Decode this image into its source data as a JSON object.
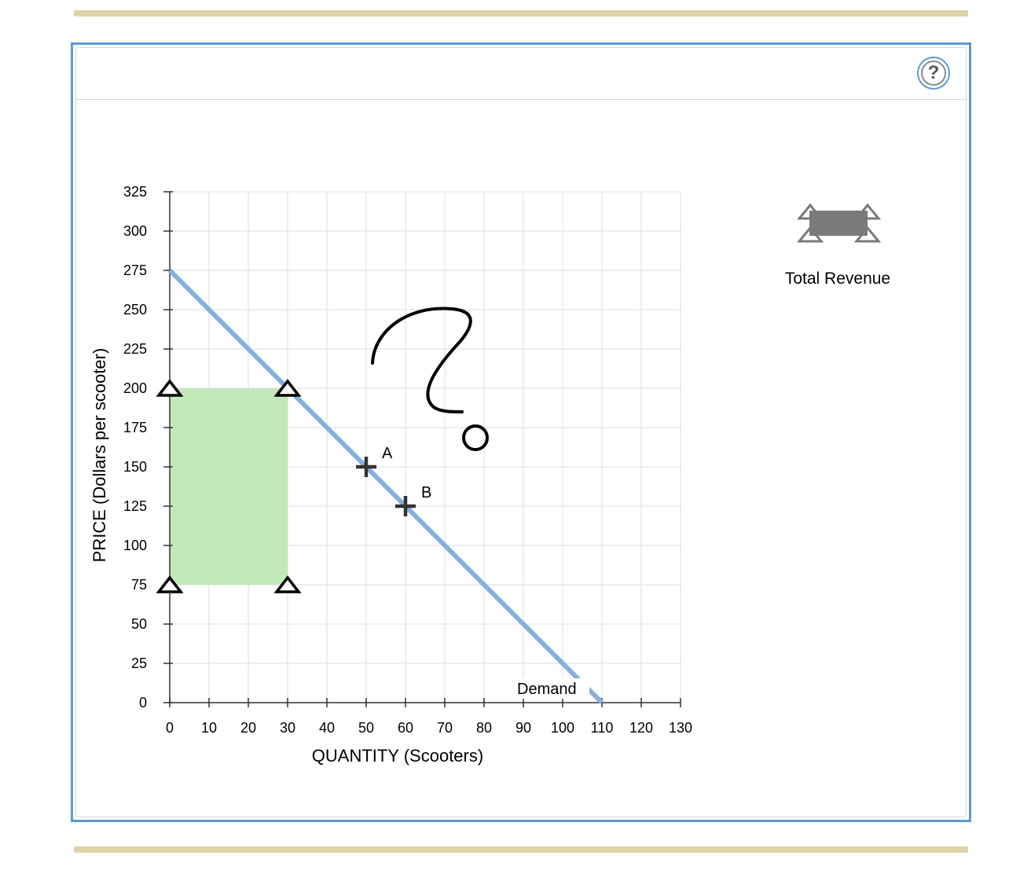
{
  "legend": {
    "total_revenue_label": "Total Revenue",
    "total_revenue_color": "#7a7a7a"
  },
  "help": {
    "icon": "question-mark-icon",
    "glyph": "?"
  },
  "colors": {
    "panel_border": "#5b9bd5",
    "demand_line": "#86b0dc",
    "revenue_fill": "#c3e9b8",
    "grid": "#e8e8e8"
  },
  "chart_data": {
    "type": "line",
    "xlabel": "QUANTITY (Scooters)",
    "ylabel": "PRICE (Dollars per scooter)",
    "xlim": [
      0,
      130
    ],
    "ylim": [
      0,
      325
    ],
    "x_ticks": [
      0,
      10,
      20,
      30,
      40,
      50,
      60,
      70,
      80,
      90,
      100,
      110,
      120,
      130
    ],
    "y_ticks": [
      0,
      25,
      50,
      75,
      100,
      125,
      150,
      175,
      200,
      225,
      250,
      275,
      300,
      325
    ],
    "grid": true,
    "series": [
      {
        "name": "Demand",
        "x": [
          0,
          110
        ],
        "y": [
          275,
          0
        ]
      }
    ],
    "points": [
      {
        "label": "A",
        "x": 50,
        "y": 150
      },
      {
        "label": "B",
        "x": 60,
        "y": 125
      }
    ],
    "total_revenue_rect": {
      "x0": 0,
      "x1": 30,
      "y0": 75,
      "y1": 200
    },
    "annotation_symbol": "?"
  }
}
